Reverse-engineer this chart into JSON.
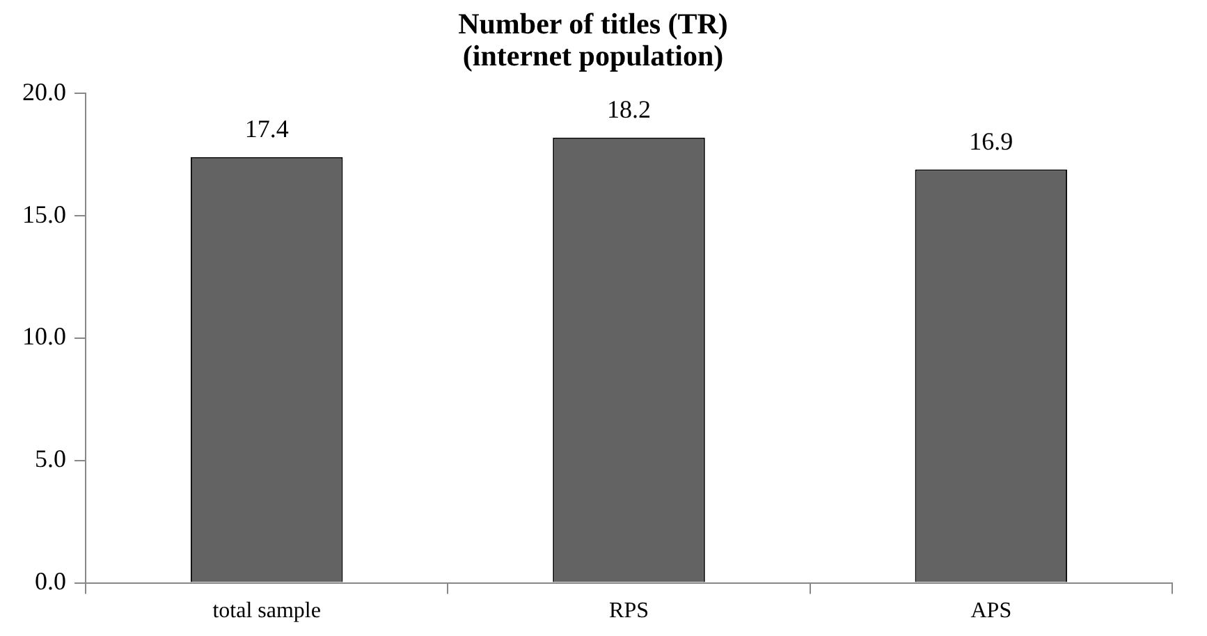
{
  "chart_data": {
    "type": "bar",
    "title": "Number of titles (TR)\n(internet population)",
    "categories": [
      "total sample",
      "RPS",
      "APS"
    ],
    "values": [
      17.4,
      18.2,
      16.9
    ],
    "color": "#636363",
    "ylim": [
      0,
      20
    ],
    "yticks": [
      {
        "value": 0,
        "label": "0.0"
      },
      {
        "value": 5,
        "label": "5.0"
      },
      {
        "value": 10,
        "label": "10.0"
      },
      {
        "value": 15,
        "label": "15.0"
      },
      {
        "value": 20,
        "label": "20.0"
      }
    ],
    "grid": false,
    "legend": false,
    "data_labels": true
  }
}
